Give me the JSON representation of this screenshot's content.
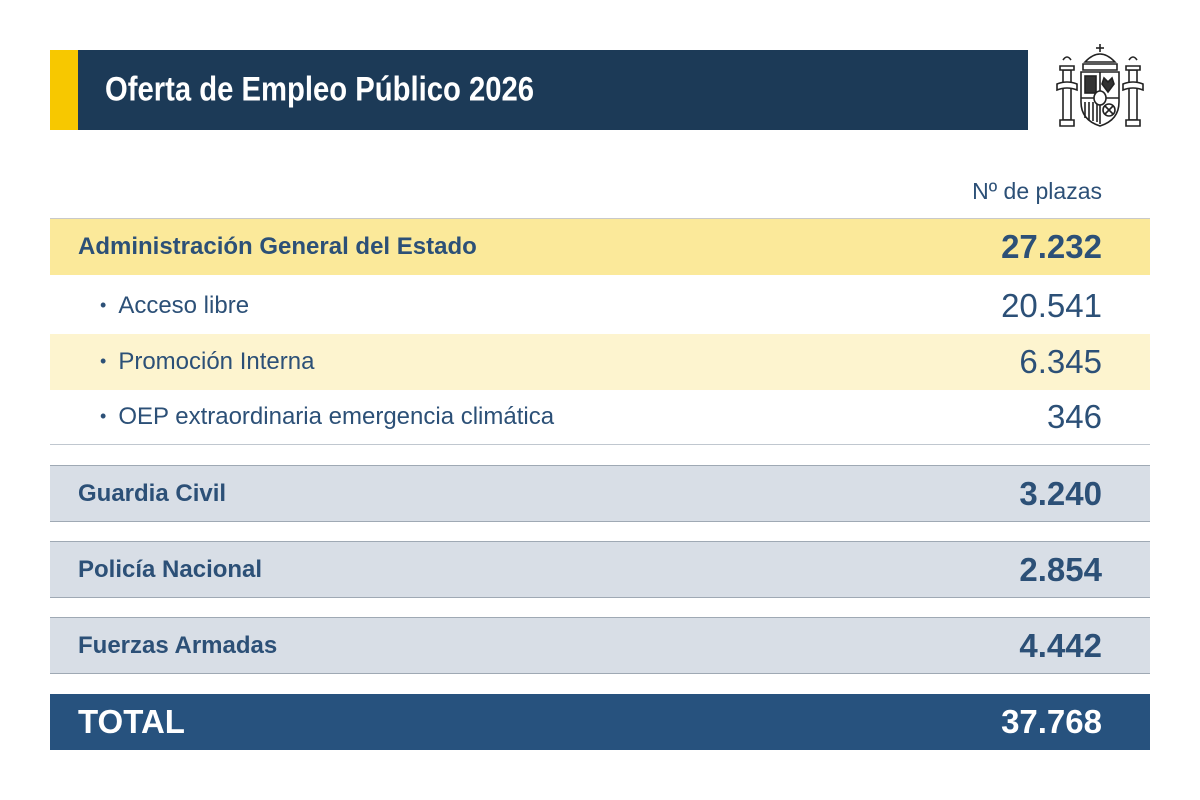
{
  "header": {
    "title": "Oferta de Empleo Público 2026",
    "logo_icon": "spain-coat-of-arms-icon",
    "accent_color": "#f7c800",
    "bar_color": "#1c3a57"
  },
  "table": {
    "column_header": "Nº de plazas",
    "rows": [
      {
        "label": "Administración General del Estado",
        "value": "27.232"
      },
      {
        "label": "Acceso libre",
        "value": "20.541"
      },
      {
        "label": "Promoción Interna",
        "value": "6.345"
      },
      {
        "label": "OEP extraordinaria emergencia climática",
        "value": "346"
      },
      {
        "label": "Guardia Civil",
        "value": "3.240"
      },
      {
        "label": "Policía Nacional",
        "value": "2.854"
      },
      {
        "label": "Fuerzas Armadas",
        "value": "4.442"
      }
    ],
    "total": {
      "label": "TOTAL",
      "value": "37.768"
    },
    "bullet": "•"
  },
  "colors": {
    "text": "#2c5077",
    "highlight_row": "#fbe99a",
    "light_highlight_row": "#fdf4cf",
    "group_row": "#d8dee6",
    "total_row": "#27527e"
  }
}
